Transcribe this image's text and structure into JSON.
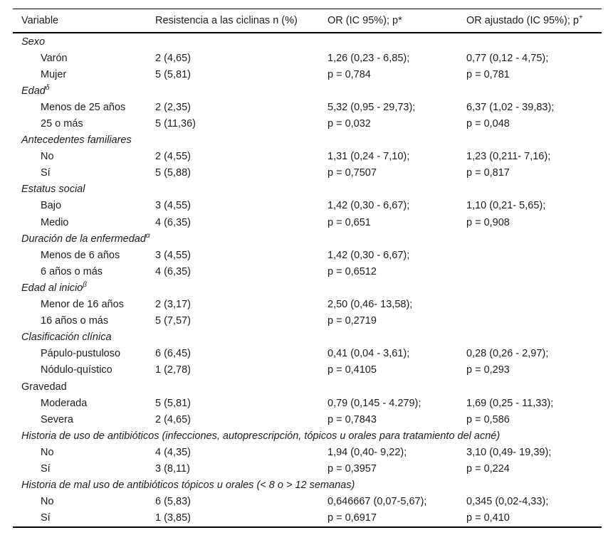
{
  "table": {
    "columns": [
      {
        "label": "Variable",
        "sup": ""
      },
      {
        "label": "Resistencia a las ciclinas n (%)",
        "sup": ""
      },
      {
        "label": "OR (IC 95%); p*",
        "sup": ""
      },
      {
        "label": "OR ajustado (IC 95%); p",
        "sup": "+"
      }
    ],
    "groups": [
      {
        "section": {
          "label": "Sexo",
          "sup": "",
          "italic": true
        },
        "rows": [
          [
            "Varón",
            "2 (4,65)",
            "1,26 (0,23 - 6,85);",
            "0,77 (0,12 - 4,75);"
          ],
          [
            "Mujer",
            "5 (5,81)",
            "p = 0,784",
            "p = 0,781"
          ]
        ]
      },
      {
        "section": {
          "label": "Edad",
          "sup": "δ",
          "italic": true
        },
        "rows": [
          [
            "Menos de 25 años",
            "2 (2,35)",
            "5,32 (0,95 - 29,73);",
            "6,37 (1,02 - 39,83);"
          ],
          [
            "25 o más",
            "5 (11,36)",
            "p = 0,032",
            "p = 0,048"
          ]
        ]
      },
      {
        "section": {
          "label": "Antecedentes familiares",
          "sup": "",
          "italic": true
        },
        "rows": [
          [
            "No",
            "2 (4,55)",
            "1,31 (0,24 - 7,10);",
            "1,23 (0,211- 7,16);"
          ],
          [
            "Sí",
            "5 (5,88)",
            "p = 0,7507",
            "p = 0,817"
          ]
        ]
      },
      {
        "section": {
          "label": "Estatus social",
          "sup": "",
          "italic": true
        },
        "rows": [
          [
            "Bajo",
            "3 (4,55)",
            "1,42 (0,30 - 6,67);",
            "1,10 (0,21- 5,65);"
          ],
          [
            "Medio",
            "4 (6,35)",
            "p = 0,651",
            "p = 0,908"
          ]
        ]
      },
      {
        "section": {
          "label": "Duración de la enfermedad",
          "sup": "α",
          "italic": true
        },
        "rows": [
          [
            "Menos de 6 años",
            "3 (4,55)",
            "1,42 (0,30 - 6,67);",
            ""
          ],
          [
            "6 años o más",
            "4 (6,35)",
            "p = 0,6512",
            ""
          ]
        ]
      },
      {
        "section": {
          "label": "Edad al inicio",
          "sup": "β",
          "italic": true
        },
        "rows": [
          [
            "Menor de 16 años",
            "2 (3,17)",
            "2,50 (0,46- 13,58);",
            ""
          ],
          [
            "16 años o más",
            "5 (7,57)",
            "p = 0,2719",
            ""
          ]
        ]
      },
      {
        "section": {
          "label": "Clasificación clínica",
          "sup": "",
          "italic": true
        },
        "rows": [
          [
            "Pápulo-pustuloso",
            "6 (6,45)",
            "0,41 (0,04 - 3,61);",
            "0,28 (0,26 - 2,97);"
          ],
          [
            "Nódulo-quístico",
            "1 (2,78)",
            "p = 0,4105",
            "p = 0,293"
          ]
        ]
      },
      {
        "section": {
          "label": "Gravedad",
          "sup": "",
          "italic": false
        },
        "rows": [
          [
            "Moderada",
            "5 (5,81)",
            "0,79 (0,145 - 4.279);",
            "1,69 (0,25 - 11,33);"
          ],
          [
            "Severa",
            "2 (4,65)",
            "p = 0,7843",
            "p = 0,586"
          ]
        ]
      },
      {
        "section": {
          "label": "Historia de uso de antibióticos (infecciones, autoprescripción, tópicos u orales para tratamiento del acné)",
          "sup": "",
          "italic": true
        },
        "rows": [
          [
            "No",
            "4 (4,35)",
            "1,94 (0,40- 9,22);",
            "3,10 (0,49- 19,39);"
          ],
          [
            "Sí",
            "3 (8,11)",
            "p = 0,3957",
            "p = 0,224"
          ]
        ]
      },
      {
        "section": {
          "label": "Historia de mal uso de antibióticos tópicos u orales (< 8 o > 12 semanas)",
          "sup": "",
          "italic": true
        },
        "rows": [
          [
            "No",
            "6 (5,83)",
            "0,646667 (0,07-5,67);",
            "0,345 (0,02-4,33);"
          ],
          [
            "Sí",
            "1 (3,85)",
            "p = 0,6917",
            "p = 0,410"
          ]
        ]
      }
    ]
  }
}
